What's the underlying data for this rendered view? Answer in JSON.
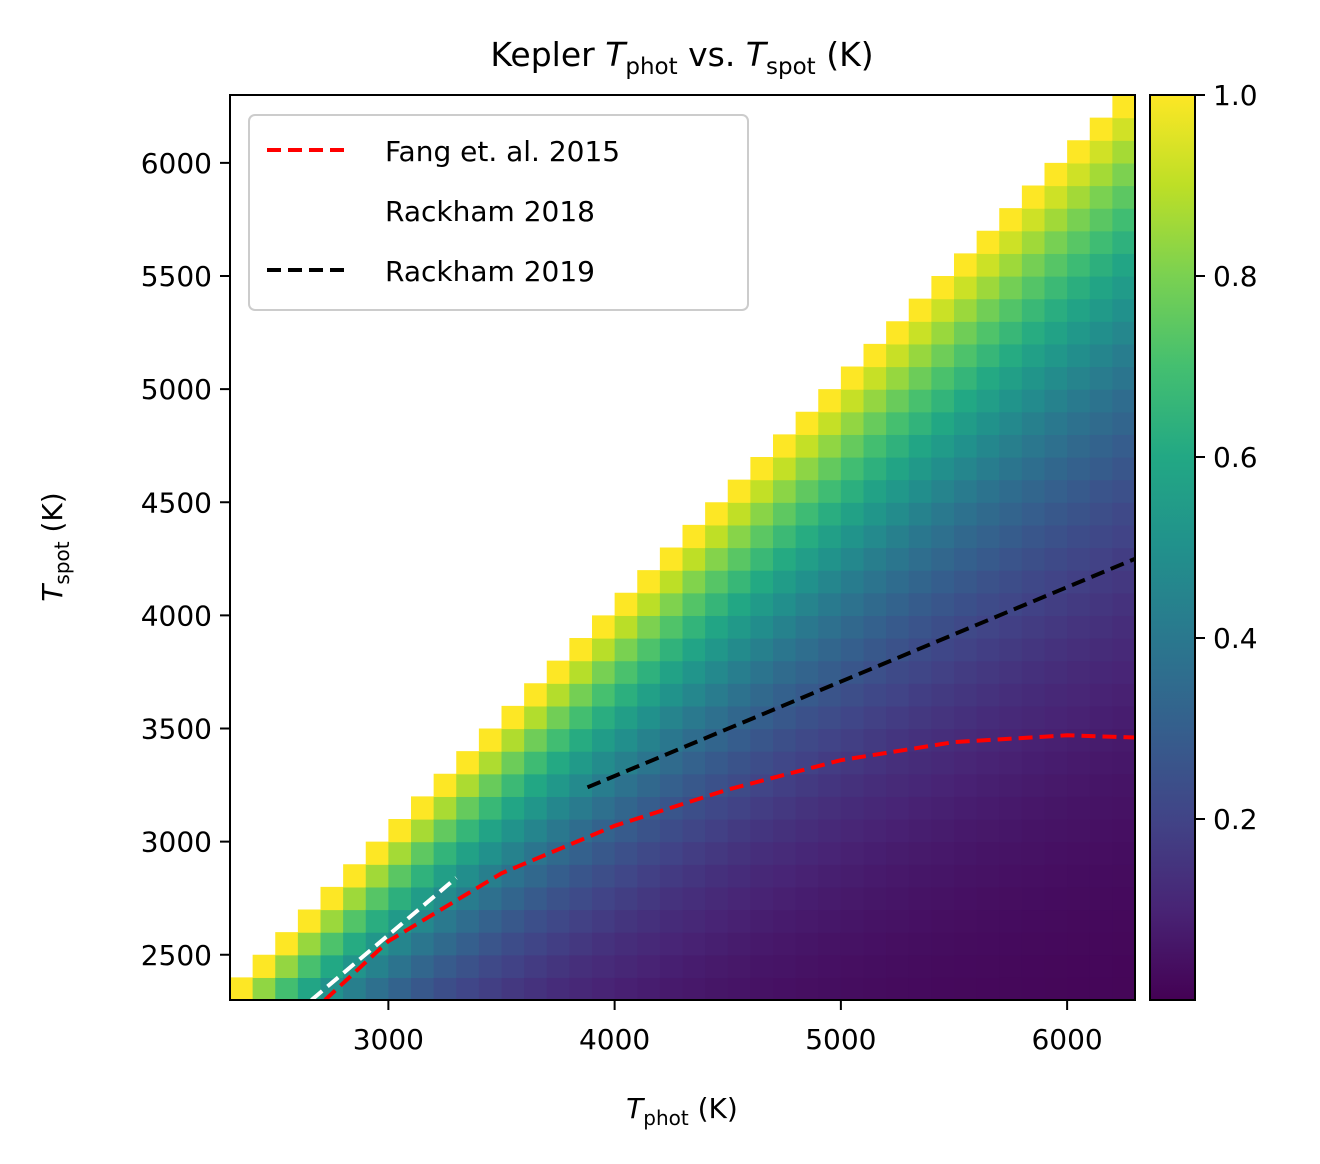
{
  "chart_data": {
    "type": "heatmap",
    "title": {
      "prefix": "Kepler ",
      "sym1": "T",
      "sub1": "phot",
      "mid": " vs. ",
      "sym2": "T",
      "sub2": "spot",
      "suffix": " (K)"
    },
    "xlabel": {
      "sym": "T",
      "sub": "phot",
      "suffix": " (K)"
    },
    "ylabel": {
      "sym": "T",
      "sub": "spot",
      "suffix": " (K)"
    },
    "xlim": [
      2300,
      6300
    ],
    "ylim": [
      2300,
      6300
    ],
    "xticks": [
      3000,
      4000,
      5000,
      6000
    ],
    "yticks": [
      2500,
      3000,
      3500,
      4000,
      4500,
      5000,
      5500,
      6000
    ],
    "xtick_labels": [
      "3000",
      "4000",
      "5000",
      "6000"
    ],
    "ytick_labels": [
      "2500",
      "3000",
      "3500",
      "4000",
      "4500",
      "5000",
      "5500",
      "6000"
    ],
    "grid_step_K": 100,
    "colormap": "viridis",
    "colorbar": {
      "range": [
        0.0,
        1.0
      ],
      "ticks": [
        0.2,
        0.4,
        0.6,
        0.8,
        1.0
      ],
      "tick_labels": [
        "0.2",
        "0.4",
        "0.6",
        "0.8",
        "1.0"
      ]
    },
    "grid": false,
    "legend": {
      "placement": "upper-left",
      "entries": [
        {
          "label": "Fang et. al. 2015",
          "color": "#ff0000",
          "style": "dashed"
        },
        {
          "label": "Rackham 2018",
          "color": "#ffffff",
          "style": "dashed"
        },
        {
          "label": "Rackham 2019",
          "color": "#000000",
          "style": "dashed"
        }
      ]
    },
    "series": [
      {
        "name": "Fang et. al. 2015",
        "color": "#ff0000",
        "x": [
          2720,
          3000,
          3500,
          4000,
          4500,
          5000,
          5500,
          6000,
          6300
        ],
        "y": [
          2300,
          2560,
          2860,
          3070,
          3230,
          3360,
          3440,
          3470,
          3460
        ]
      },
      {
        "name": "Rackham 2018",
        "color": "#ffffff",
        "x": [
          2660,
          3300
        ],
        "y": [
          2300,
          2840
        ]
      },
      {
        "name": "Rackham 2019",
        "color": "#000000",
        "x": [
          3880,
          6300
        ],
        "y": [
          3240,
          4250
        ]
      }
    ]
  }
}
